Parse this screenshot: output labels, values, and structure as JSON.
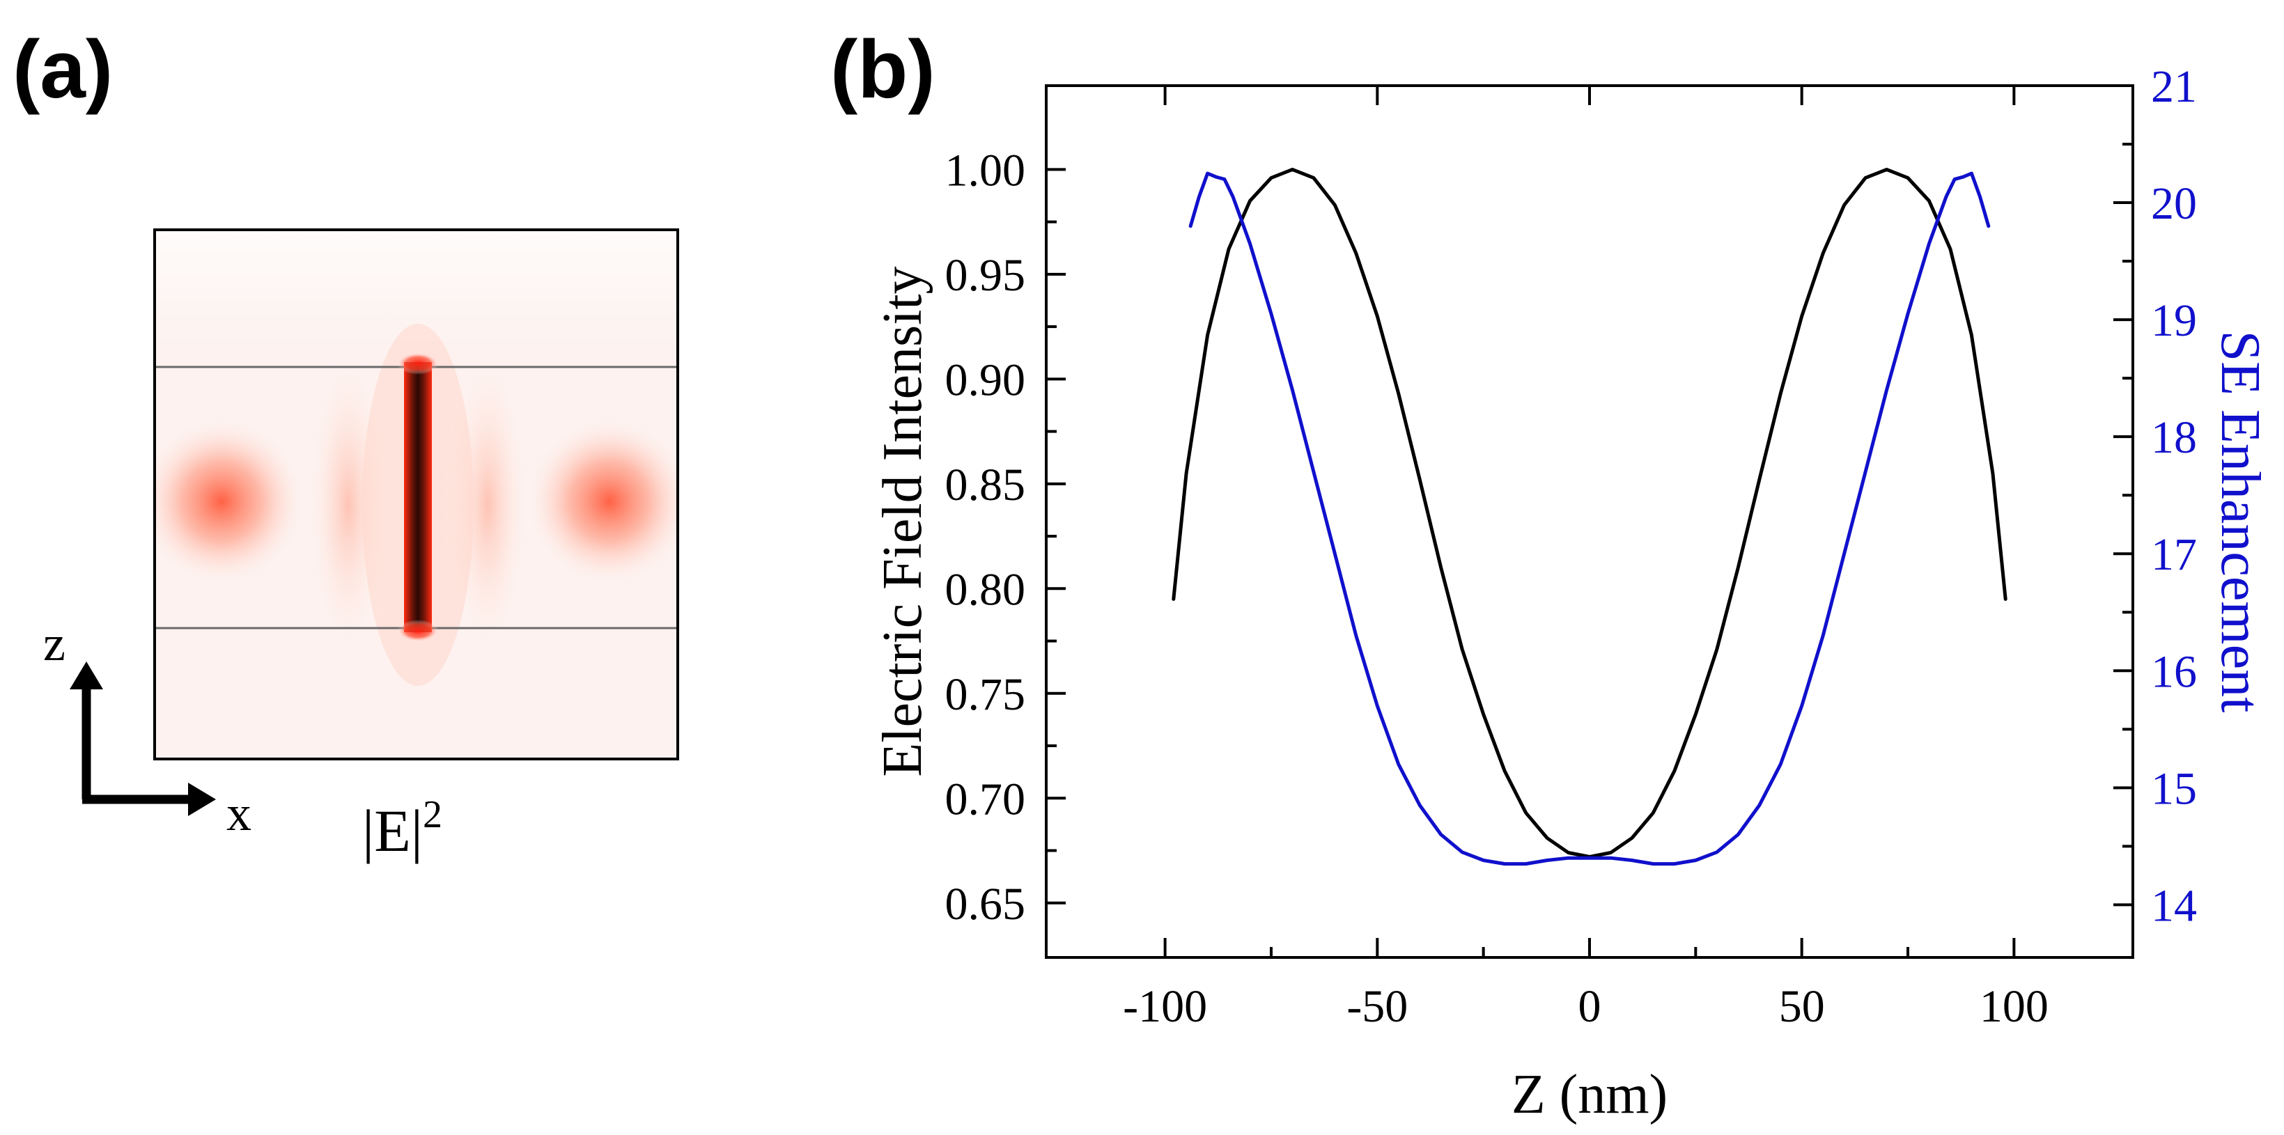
{
  "panel_a": {
    "label": "(a)",
    "field_label": "|E|",
    "field_exponent": "2",
    "axis_z": "z",
    "axis_x": "x"
  },
  "panel_b": {
    "label": "(b)"
  },
  "chart_data": {
    "type": "line",
    "title": "",
    "xlabel": "Z (nm)",
    "ylabel": "Electric Field Intensity",
    "y2label": "SE Enhancement",
    "xlim": [
      -128,
      128
    ],
    "ylim": [
      0.624,
      1.04
    ],
    "y2lim": [
      13.55,
      21
    ],
    "xticks": [
      -100,
      -50,
      0,
      50,
      100
    ],
    "yticks": [
      0.65,
      0.7,
      0.75,
      0.8,
      0.85,
      0.9,
      0.95,
      1.0
    ],
    "yticklabels": [
      "0.65",
      "0.70",
      "0.75",
      "0.80",
      "0.85",
      "0.90",
      "0.95",
      "1.00"
    ],
    "y2ticks": [
      14,
      15,
      16,
      17,
      18,
      19,
      20,
      21
    ],
    "series": [
      {
        "name": "Electric Field Intensity",
        "axis": "left",
        "color": "#000000",
        "x": [
          -98,
          -95,
          -90,
          -85,
          -80,
          -75,
          -70,
          -65,
          -60,
          -55,
          -50,
          -45,
          -40,
          -35,
          -30,
          -25,
          -20,
          -15,
          -10,
          -5,
          0,
          5,
          10,
          15,
          20,
          25,
          30,
          35,
          40,
          45,
          50,
          55,
          60,
          65,
          70,
          75,
          80,
          85,
          90,
          95,
          98
        ],
        "values": [
          0.795,
          0.855,
          0.921,
          0.962,
          0.985,
          0.996,
          1.0,
          0.996,
          0.983,
          0.96,
          0.93,
          0.893,
          0.852,
          0.81,
          0.771,
          0.74,
          0.713,
          0.693,
          0.681,
          0.674,
          0.672,
          0.674,
          0.681,
          0.693,
          0.713,
          0.74,
          0.771,
          0.81,
          0.852,
          0.893,
          0.93,
          0.96,
          0.983,
          0.996,
          1.0,
          0.996,
          0.985,
          0.962,
          0.921,
          0.855,
          0.795
        ]
      },
      {
        "name": "SE Enhancement",
        "axis": "right",
        "color": "#1010cc",
        "x": [
          -94,
          -92,
          -90,
          -88,
          -86,
          -84,
          -80,
          -75,
          -70,
          -65,
          -60,
          -55,
          -50,
          -45,
          -40,
          -35,
          -30,
          -25,
          -20,
          -15,
          -10,
          -5,
          0,
          5,
          10,
          15,
          20,
          25,
          30,
          35,
          40,
          45,
          50,
          55,
          60,
          65,
          70,
          75,
          80,
          84,
          86,
          88,
          90,
          92,
          94
        ],
        "values": [
          19.8,
          20.05,
          20.25,
          20.22,
          20.2,
          20.05,
          19.65,
          19.05,
          18.4,
          17.7,
          17.0,
          16.3,
          15.7,
          15.2,
          14.85,
          14.6,
          14.45,
          14.38,
          14.35,
          14.35,
          14.38,
          14.4,
          14.4,
          14.4,
          14.38,
          14.35,
          14.35,
          14.38,
          14.45,
          14.6,
          14.85,
          15.2,
          15.7,
          16.3,
          17.0,
          17.7,
          18.4,
          19.05,
          19.65,
          20.05,
          20.2,
          20.22,
          20.25,
          20.05,
          19.8
        ]
      }
    ]
  }
}
